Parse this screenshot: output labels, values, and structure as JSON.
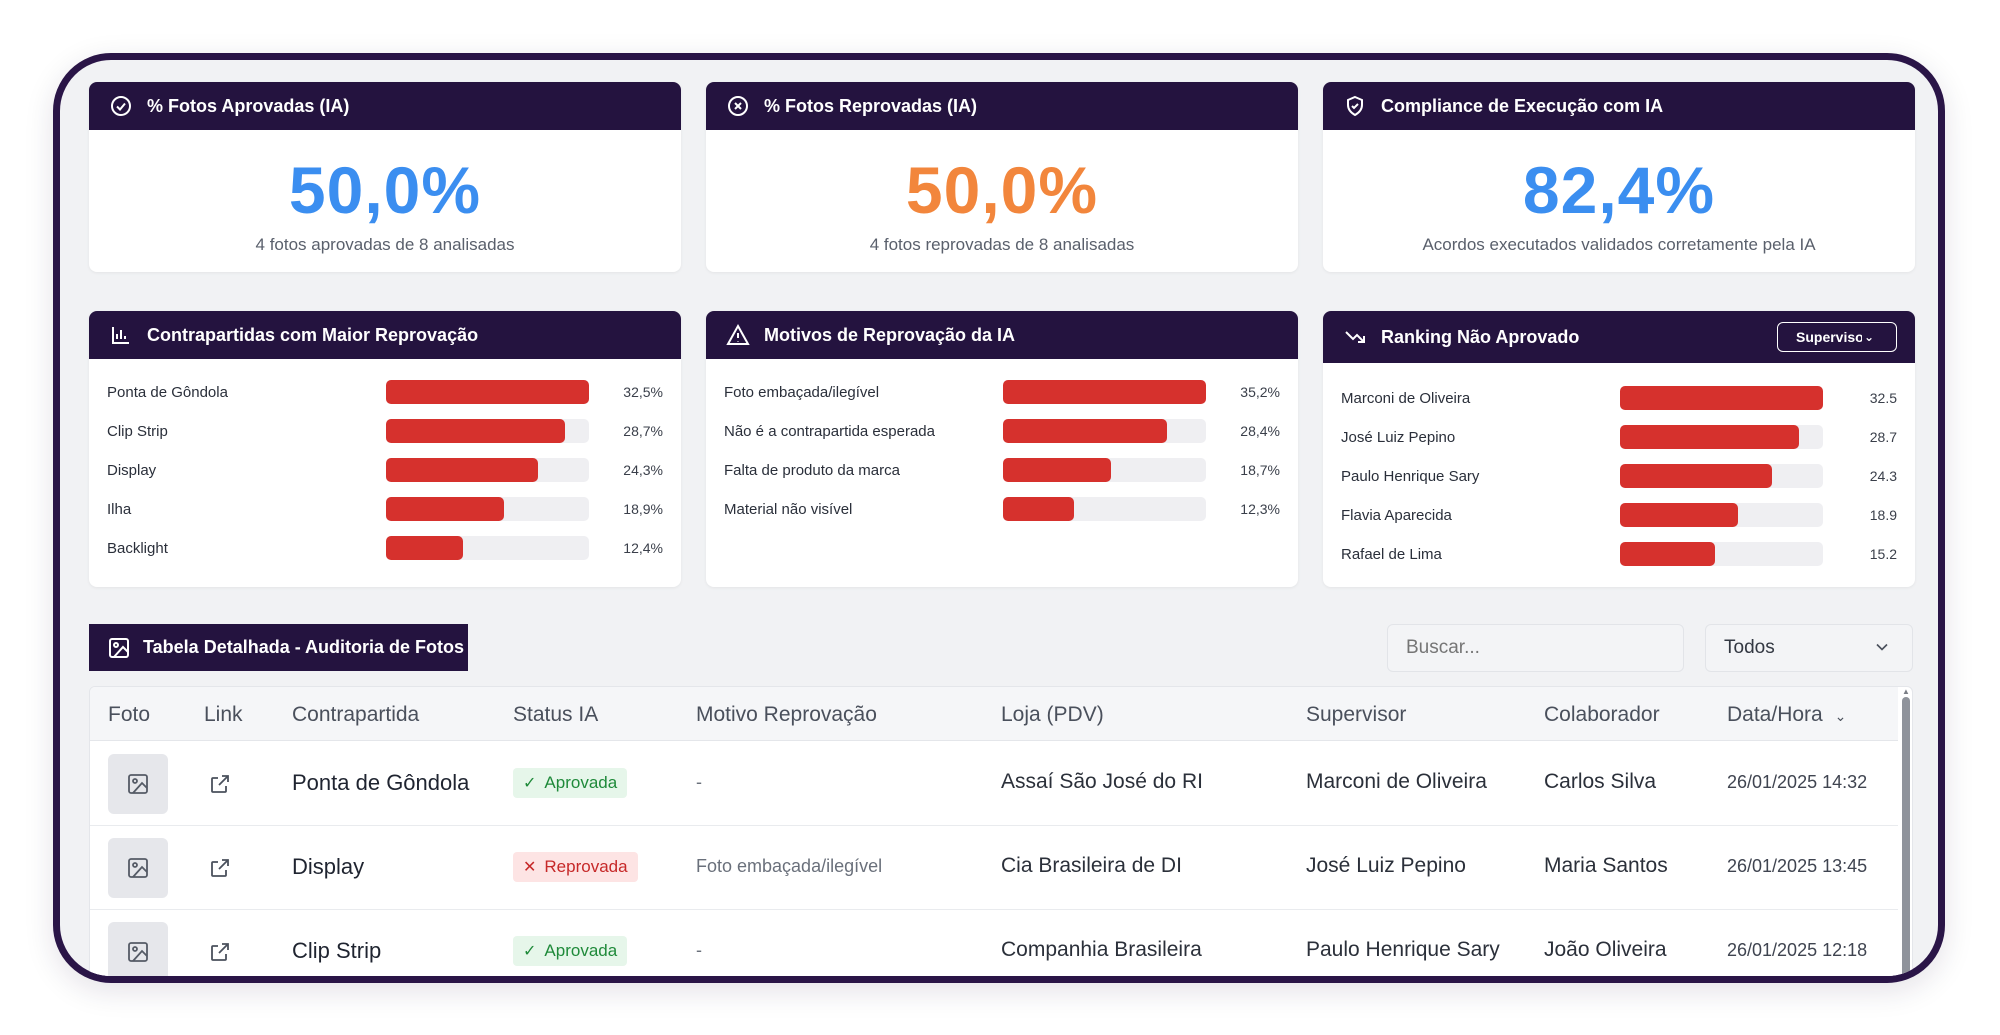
{
  "kpis": [
    {
      "title": "% Fotos Aprovadas (IA)",
      "icon": "check-circle-icon",
      "value": "50,0%",
      "sub": "4 fotos aprovadas de 8 analisadas",
      "color": "#3b8ef0"
    },
    {
      "title": "% Fotos Reprovadas (IA)",
      "icon": "x-circle-icon",
      "value": "50,0%",
      "sub": "4 fotos reprovadas de 8 analisadas",
      "color": "#f2863c"
    },
    {
      "title": "Compliance de Execução com IA",
      "icon": "shield-check-icon",
      "value": "82,4%",
      "sub": "Acordos executados validados corretamente pela IA",
      "color": "#3b8ef0"
    }
  ],
  "contrapartidas": {
    "title": "Contrapartidas com Maior Reprovação",
    "icon": "bar-chart-icon",
    "items": [
      {
        "label": "Ponta de Gôndola",
        "value": 32.5,
        "text": "32,5%"
      },
      {
        "label": "Clip Strip",
        "value": 28.7,
        "text": "28,7%"
      },
      {
        "label": "Display",
        "value": 24.3,
        "text": "24,3%"
      },
      {
        "label": "Ilha",
        "value": 18.9,
        "text": "18,9%"
      },
      {
        "label": "Backlight",
        "value": 12.4,
        "text": "12,4%"
      }
    ]
  },
  "motivos": {
    "title": "Motivos de Reprovação da IA",
    "icon": "warning-triangle-icon",
    "items": [
      {
        "label": "Foto embaçada/ilegível",
        "value": 35.2,
        "text": "35,2%"
      },
      {
        "label": "Não é a contrapartida esperada",
        "value": 28.4,
        "text": "28,4%"
      },
      {
        "label": "Falta de produto da marca",
        "value": 18.7,
        "text": "18,7%"
      },
      {
        "label": "Material não visível",
        "value": 12.3,
        "text": "12,3%"
      }
    ]
  },
  "ranking": {
    "title": "Ranking Não Aprovado",
    "icon": "trending-down-icon",
    "dropdown": "Supervisor",
    "items": [
      {
        "label": "Marconi de Oliveira",
        "value": 32.5,
        "text": "32.5"
      },
      {
        "label": "José Luiz Pepino",
        "value": 28.7,
        "text": "28.7"
      },
      {
        "label": "Paulo Henrique Sary",
        "value": 24.3,
        "text": "24.3"
      },
      {
        "label": "Flavia Aparecida",
        "value": 18.9,
        "text": "18.9"
      },
      {
        "label": "Rafael de Lima",
        "value": 15.2,
        "text": "15.2"
      }
    ]
  },
  "table": {
    "title": "Tabela Detalhada - Auditoria de Fotos",
    "search_placeholder": "Buscar...",
    "filter": "Todos",
    "columns": [
      "Foto",
      "Link",
      "Contrapartida",
      "Status IA",
      "Motivo Reprovação",
      "Loja (PDV)",
      "Supervisor",
      "Colaborador",
      "Data/Hora"
    ],
    "rows": [
      {
        "contrapartida": "Ponta de Gôndola",
        "status": "Aprovada",
        "status_type": "ok",
        "motivo": "-",
        "loja": "Assaí São José do RI",
        "supervisor": "Marconi de Oliveira",
        "colaborador": "Carlos Silva",
        "data": "26/01/2025 14:32"
      },
      {
        "contrapartida": "Display",
        "status": "Reprovada",
        "status_type": "bad",
        "motivo": "Foto embaçada/ilegível",
        "loja": "Cia Brasileira de DI",
        "supervisor": "José Luiz Pepino",
        "colaborador": "Maria Santos",
        "data": "26/01/2025 13:45"
      },
      {
        "contrapartida": "Clip Strip",
        "status": "Aprovada",
        "status_type": "ok",
        "motivo": "-",
        "loja": "Companhia Brasileira",
        "supervisor": "Paulo Henrique Sary",
        "colaborador": "João Oliveira",
        "data": "26/01/2025 12:18"
      }
    ]
  },
  "colors": {
    "header": "#24133f",
    "bar": "#d6312d",
    "frame": "#2a1547"
  }
}
